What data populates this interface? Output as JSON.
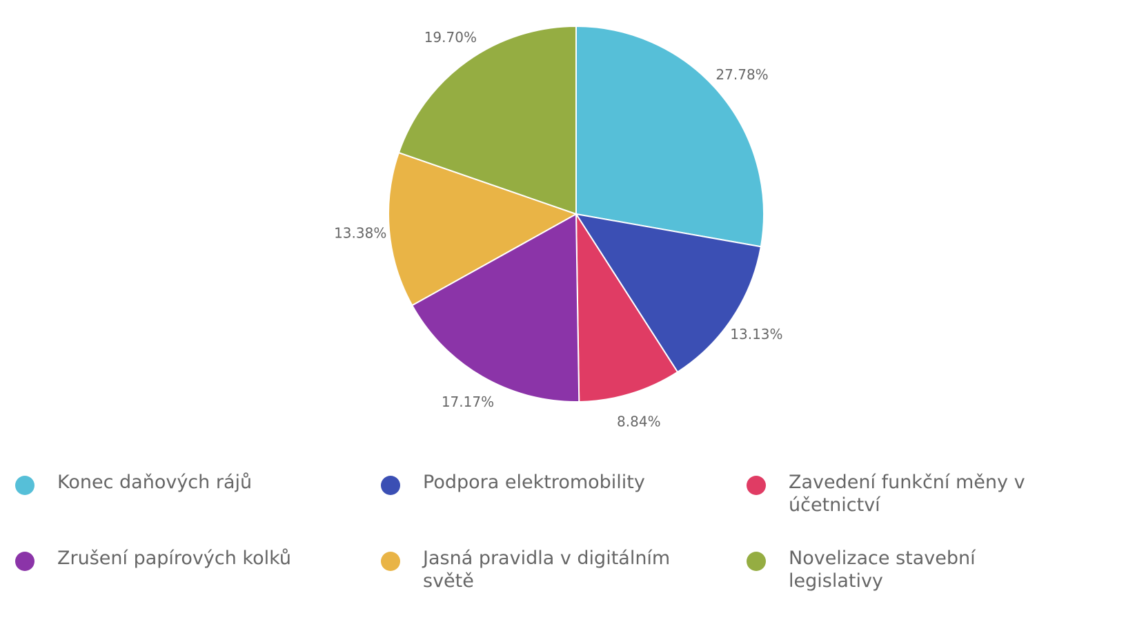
{
  "chart_data": {
    "type": "pie",
    "title": "",
    "slices": [
      {
        "label": "Konec daňových rájů",
        "value": 27.78,
        "value_label": "27.78%",
        "color": "#56bfd8"
      },
      {
        "label": "Podpora elektromobility",
        "value": 13.13,
        "value_label": "13.13%",
        "color": "#3b4fb4"
      },
      {
        "label": "Zavedení funkční měny v účetnictví",
        "value": 8.84,
        "value_label": "8.84%",
        "color": "#e03c64"
      },
      {
        "label": "Zrušení papírových kolků",
        "value": 17.17,
        "value_label": "17.17%",
        "color": "#8b34a8"
      },
      {
        "label": "Jasná pravidla v digitálním světě",
        "value": 13.38,
        "value_label": "13.38%",
        "color": "#e9b446"
      },
      {
        "label": "Novelizace stavební legislativy",
        "value": 19.7,
        "value_label": "19.70%",
        "color": "#95ad42"
      }
    ],
    "start_angle_deg": 0,
    "direction": "clockwise",
    "legend_position": "bottom",
    "legend_columns": 3
  }
}
